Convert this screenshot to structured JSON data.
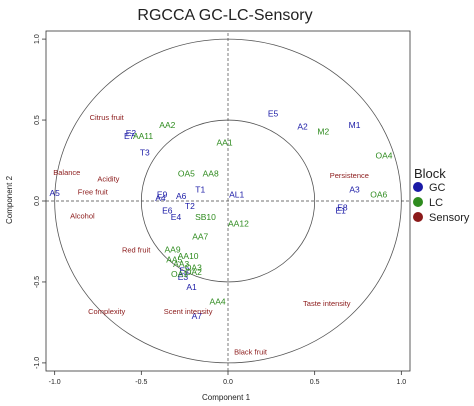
{
  "chart_data": {
    "type": "scatter",
    "title": "RGCCA GC-LC-Sensory",
    "xlabel": "Component  1",
    "ylabel": "Component  2",
    "xlim": [
      -1.05,
      1.05
    ],
    "ylim": [
      -1.05,
      1.05
    ],
    "xticks": [
      -1.0,
      -0.5,
      0.0,
      0.5,
      1.0
    ],
    "xtick_labels": [
      "-1.0",
      "-0.5",
      "0.0",
      "0.5",
      "1.0"
    ],
    "yticks": [
      -1.0,
      -0.5,
      0.0,
      0.5,
      1.0
    ],
    "ytick_labels": [
      "-1.0",
      "-0.5",
      "0.0",
      "0.5",
      "1.0"
    ],
    "circles": [
      1.0,
      0.5
    ],
    "grid": false,
    "legend": {
      "title": "Block",
      "position": "right",
      "entries": [
        {
          "label": "GC",
          "color": "#1a1aa6"
        },
        {
          "label": "LC",
          "color": "#2e8b1e"
        },
        {
          "label": "Sensory",
          "color": "#8b1a1a"
        }
      ]
    },
    "series": [
      {
        "name": "GC",
        "color": "#1a1aa6",
        "points": [
          {
            "label": "E5",
            "x": 0.26,
            "y": 0.54
          },
          {
            "label": "A2",
            "x": 0.43,
            "y": 0.46
          },
          {
            "label": "M1",
            "x": 0.73,
            "y": 0.47
          },
          {
            "label": "E2",
            "x": -0.56,
            "y": 0.42
          },
          {
            "label": "E7",
            "x": -0.57,
            "y": 0.4
          },
          {
            "label": "T3",
            "x": -0.48,
            "y": 0.3
          },
          {
            "label": "A5",
            "x": -1.0,
            "y": 0.05
          },
          {
            "label": "E9",
            "x": -0.38,
            "y": 0.04
          },
          {
            "label": "A4",
            "x": -0.39,
            "y": 0.02
          },
          {
            "label": "A6",
            "x": -0.27,
            "y": 0.03
          },
          {
            "label": "T1",
            "x": -0.16,
            "y": 0.07
          },
          {
            "label": "AL1",
            "x": 0.05,
            "y": 0.04
          },
          {
            "label": "A3",
            "x": 0.73,
            "y": 0.07
          },
          {
            "label": "E8",
            "x": 0.66,
            "y": -0.04
          },
          {
            "label": "E1",
            "x": 0.65,
            "y": -0.06
          },
          {
            "label": "E6",
            "x": -0.35,
            "y": -0.06
          },
          {
            "label": "T2",
            "x": -0.22,
            "y": -0.03
          },
          {
            "label": "E4",
            "x": -0.3,
            "y": -0.1
          },
          {
            "label": "E2",
            "x": -0.25,
            "y": -0.43
          },
          {
            "label": "E3",
            "x": -0.26,
            "y": -0.47
          },
          {
            "label": "A1",
            "x": -0.21,
            "y": -0.53
          },
          {
            "label": "A7",
            "x": -0.18,
            "y": -0.71
          }
        ]
      },
      {
        "name": "LC",
        "color": "#2e8b1e",
        "points": [
          {
            "label": "AA11",
            "x": -0.49,
            "y": 0.4
          },
          {
            "label": "AA2",
            "x": -0.35,
            "y": 0.47
          },
          {
            "label": "M2",
            "x": 0.55,
            "y": 0.43
          },
          {
            "label": "OA4",
            "x": 0.9,
            "y": 0.28
          },
          {
            "label": "AA1",
            "x": -0.02,
            "y": 0.36
          },
          {
            "label": "OA5",
            "x": -0.24,
            "y": 0.17
          },
          {
            "label": "AA8",
            "x": -0.1,
            "y": 0.17
          },
          {
            "label": "OA6",
            "x": 0.87,
            "y": 0.04
          },
          {
            "label": "SB10",
            "x": -0.13,
            "y": -0.1
          },
          {
            "label": "AA12",
            "x": 0.06,
            "y": -0.14
          },
          {
            "label": "AA7",
            "x": -0.16,
            "y": -0.22
          },
          {
            "label": "AA9",
            "x": -0.32,
            "y": -0.3
          },
          {
            "label": "AA10",
            "x": -0.23,
            "y": -0.34
          },
          {
            "label": "AA5",
            "x": -0.31,
            "y": -0.36
          },
          {
            "label": "OA3",
            "x": -0.2,
            "y": -0.41
          },
          {
            "label": "OA1",
            "x": -0.28,
            "y": -0.45
          },
          {
            "label": "OA2",
            "x": -0.2,
            "y": -0.44
          },
          {
            "label": "AA4",
            "x": -0.06,
            "y": -0.62
          },
          {
            "label": "AA3",
            "x": -0.27,
            "y": -0.39
          }
        ]
      },
      {
        "name": "Sensory",
        "color": "#8b1a1a",
        "points": [
          {
            "label": "Citrus fruit",
            "x": -0.7,
            "y": 0.52
          },
          {
            "label": "Balance",
            "x": -0.93,
            "y": 0.18
          },
          {
            "label": "Acidity",
            "x": -0.69,
            "y": 0.14
          },
          {
            "label": "Free fruit",
            "x": -0.78,
            "y": 0.06
          },
          {
            "label": "Persistence",
            "x": 0.7,
            "y": 0.16
          },
          {
            "label": "Alcohol",
            "x": -0.84,
            "y": -0.09
          },
          {
            "label": "Red fruit",
            "x": -0.53,
            "y": -0.3
          },
          {
            "label": "Complexity",
            "x": -0.7,
            "y": -0.68
          },
          {
            "label": "Scent intensity",
            "x": -0.23,
            "y": -0.68
          },
          {
            "label": "Taste intensity",
            "x": 0.57,
            "y": -0.63
          },
          {
            "label": "Black fruit",
            "x": 0.13,
            "y": -0.93
          }
        ]
      }
    ]
  }
}
